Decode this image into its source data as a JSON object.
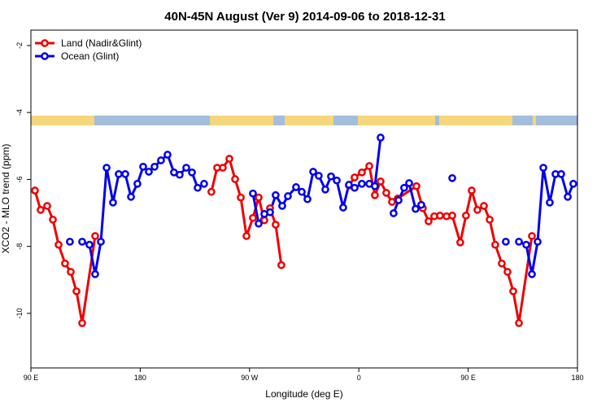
{
  "chart_data": {
    "type": "line",
    "title": "40N-45N August (Ver 9)   2014-09-06 to 2018-12-31",
    "x_label": "Longitude (deg E)",
    "y_label": "XCO2 - MLO trend (ppm)",
    "xlim": [
      90,
      540
    ],
    "ylim": [
      -11.63,
      -1.54
    ],
    "xticks": [
      {
        "value": 90,
        "label": "90 E"
      },
      180,
      {
        "value": 270,
        "label": "90 W"
      },
      {
        "value": 360,
        "label": "0"
      },
      {
        "value": 450,
        "label": "90 E"
      },
      {
        "value": 540,
        "label": "180"
      }
    ],
    "yticks": [
      -10,
      -8,
      -6,
      -4,
      -2
    ],
    "legend": "top-left",
    "series": [
      {
        "name": "Land (Nadir&Glint)",
        "color": "#ee0000",
        "x": [
          93.3,
          98.0,
          103.4,
          108.1,
          112.8,
          118.1,
          122.8,
          127.5,
          132.2,
          142.9,
          null,
          238.6,
          243.3,
          248.0,
          253.4,
          258.1,
          262.8,
          267.5,
          272.8,
          277.5,
          282.2,
          286.9,
          291.5,
          296.2,
          null,
          351.8,
          356.5,
          362.5,
          368.6,
          373.2,
          377.9,
          382.6,
          387.3,
          392.0,
          407.4,
          412.7,
          417.4,
          422.1,
          426.8,
          432.2,
          436.9,
          443.5,
          448.2,
          452.9,
          457.6,
          463.0,
          467.7,
          472.3,
          477.7,
          482.4,
          487.1,
          491.8,
          502.5
        ],
        "values": [
          -6.33,
          -6.91,
          -6.79,
          -7.2,
          -7.95,
          -8.51,
          -8.76,
          -9.34,
          -10.29,
          -7.69,
          null,
          -6.37,
          -5.65,
          -5.65,
          -5.38,
          -5.99,
          -6.54,
          -7.69,
          -7.15,
          -6.54,
          -7.22,
          -6.86,
          -7.35,
          -8.56,
          null,
          -6.18,
          -5.94,
          -5.79,
          -5.6,
          -6.47,
          -6.06,
          -6.4,
          -6.67,
          -6.57,
          -6.2,
          -6.86,
          -7.25,
          -7.1,
          -7.08,
          -7.1,
          -7.08,
          -7.88,
          -7.08,
          -6.33,
          -6.91,
          -6.79,
          -7.2,
          -7.95,
          -8.51,
          -8.76,
          -9.34,
          -10.29,
          -7.69
        ]
      },
      {
        "name": "Ocean (Glint)",
        "color": "#0000ee",
        "x": [
          122.1,
          null,
          132.2,
          138.2,
          142.9,
          147.6,
          152.3,
          157.6,
          162.3,
          167.7,
          172.4,
          177.7,
          182.4,
          187.1,
          191.8,
          197.1,
          202.5,
          207.8,
          212.5,
          217.9,
          222.6,
          227.3,
          232.6,
          null,
          272.8,
          277.5,
          282.2,
          286.9,
          291.5,
          296.9,
          301.6,
          308.3,
          313.0,
          317.7,
          322.4,
          327.0,
          332.4,
          337.1,
          341.8,
          347.1,
          351.8,
          356.5,
          362.5,
          368.6,
          373.2,
          377.9,
          null,
          388.6,
          392.7,
          397.3,
          401.4,
          406.7,
          411.4,
          null,
          436.9,
          null,
          481.0,
          null,
          491.8,
          497.8,
          502.5,
          507.2,
          511.9,
          517.2,
          521.9,
          526.6,
          532.0,
          536.6
        ],
        "values": [
          -7.86,
          null,
          -7.86,
          -7.95,
          -8.83,
          -7.86,
          -5.65,
          -6.69,
          -5.84,
          -5.84,
          -6.52,
          -6.13,
          -5.62,
          -5.77,
          -5.62,
          -5.43,
          -5.26,
          -5.79,
          -5.86,
          -5.65,
          -5.79,
          -6.25,
          -6.13,
          null,
          -6.42,
          -7.32,
          -7.03,
          -6.98,
          -6.47,
          -6.79,
          -6.5,
          -6.23,
          -6.37,
          -6.59,
          -5.77,
          -5.89,
          -6.3,
          -5.91,
          -6.03,
          -6.84,
          -6.16,
          -6.25,
          -6.13,
          -6.13,
          -6.2,
          -4.75,
          null,
          -7.01,
          -6.62,
          -6.25,
          -6.11,
          -6.88,
          -6.76,
          null,
          -5.96,
          null,
          -7.86,
          null,
          -7.86,
          -7.95,
          -8.83,
          -7.86,
          -5.65,
          -6.69,
          -5.84,
          -5.84,
          -6.52,
          -6.13
        ]
      }
    ]
  }
}
